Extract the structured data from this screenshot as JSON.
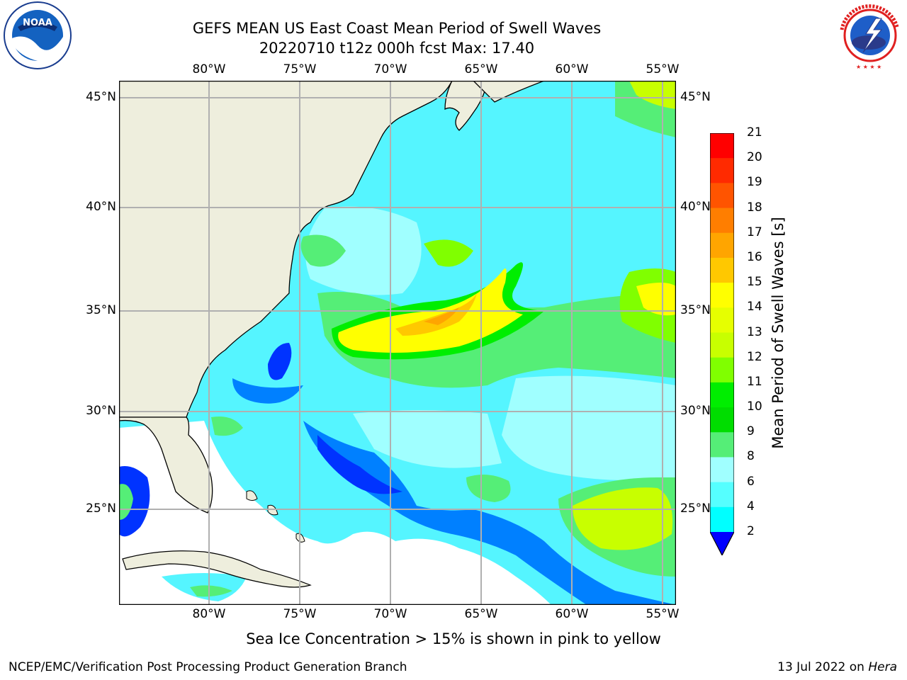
{
  "header": {
    "title_line1": "GEFS MEAN US East Coast Mean Period of Swell Waves",
    "title_line2": "20220710 t12z 000h fcst   Max: 17.40"
  },
  "logos": {
    "left": "NOAA",
    "right": "NATIONAL WEATHER SERVICE"
  },
  "axes": {
    "lon_labels": [
      "80°W",
      "75°W",
      "70°W",
      "65°W",
      "60°W",
      "55°W"
    ],
    "lat_labels": [
      "45°N",
      "40°N",
      "35°N",
      "30°N",
      "25°N"
    ]
  },
  "colorbar": {
    "title": "Mean Period of Swell Waves [s]",
    "ticks": [
      "21",
      "20",
      "19",
      "18",
      "17",
      "16",
      "15",
      "14",
      "13",
      "12",
      "11",
      "10",
      "9",
      "8",
      "6",
      "4",
      "2"
    ],
    "colors": [
      "#ff0000",
      "#ff2a00",
      "#ff5400",
      "#ff7e00",
      "#ffa500",
      "#ffc800",
      "#ffff00",
      "#e6ff00",
      "#c8ff00",
      "#80ff00",
      "#00ee00",
      "#00dd00",
      "#55ee77",
      "#a0ffff",
      "#55ffff",
      "#00ffff",
      "#00aaff",
      "#0000ff"
    ],
    "colors_note_order": "top-to-bottom"
  },
  "footer": {
    "sea_ice_note": "Sea Ice Concentration > 15% is shown in pink to yellow",
    "credit": "NCEP/EMC/Verification Post Processing Product Generation Branch",
    "date_prefix": "13 Jul 2022 on ",
    "date_machine": "Hera"
  }
}
